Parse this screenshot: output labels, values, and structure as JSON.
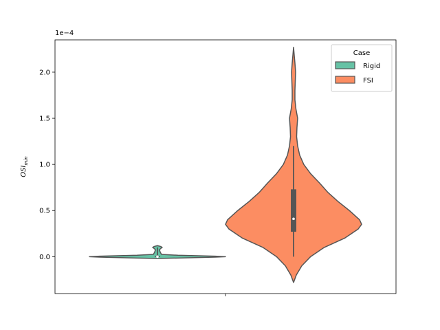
{
  "chart_data": {
    "type": "violin",
    "title": "",
    "xlabel": "",
    "ylabel_main": "OSI",
    "ylabel_sub": "min",
    "y_offset_text": "1e−4",
    "ylim": [
      -0.4,
      2.35
    ],
    "yticks": [
      {
        "value": 0.0,
        "label": "0.0"
      },
      {
        "value": 0.5,
        "label": "0.5"
      },
      {
        "value": 1.0,
        "label": "1.0"
      },
      {
        "value": 1.5,
        "label": "1.5"
      },
      {
        "value": 2.0,
        "label": "2.0"
      }
    ],
    "legend": {
      "title": "Case",
      "placement": "top-right",
      "entries": [
        "Rigid",
        "FSI"
      ]
    },
    "series": [
      {
        "name": "Rigid",
        "color": "#66c2a5",
        "density": [
          {
            "y": -0.02,
            "w": 0.0
          },
          {
            "y": -0.015,
            "w": 0.3
          },
          {
            "y": -0.005,
            "w": 0.85
          },
          {
            "y": 0.0,
            "w": 1.0
          },
          {
            "y": 0.005,
            "w": 0.85
          },
          {
            "y": 0.015,
            "w": 0.3
          },
          {
            "y": 0.025,
            "w": 0.06
          },
          {
            "y": 0.05,
            "w": 0.04
          },
          {
            "y": 0.075,
            "w": 0.03
          },
          {
            "y": 0.09,
            "w": 0.05
          },
          {
            "y": 0.1,
            "w": 0.07
          },
          {
            "y": 0.11,
            "w": 0.05
          },
          {
            "y": 0.12,
            "w": 0.0
          }
        ],
        "box": {
          "q1": 0.0,
          "median": 0.0,
          "q3": 0.01,
          "whisker_low": 0.0,
          "whisker_high": 0.1
        }
      },
      {
        "name": "FSI",
        "color": "#fc8d62",
        "density": [
          {
            "y": -0.28,
            "w": 0.0
          },
          {
            "y": -0.2,
            "w": 0.04
          },
          {
            "y": -0.1,
            "w": 0.12
          },
          {
            "y": 0.0,
            "w": 0.25
          },
          {
            "y": 0.1,
            "w": 0.45
          },
          {
            "y": 0.2,
            "w": 0.75
          },
          {
            "y": 0.3,
            "w": 0.95
          },
          {
            "y": 0.35,
            "w": 1.0
          },
          {
            "y": 0.4,
            "w": 0.97
          },
          {
            "y": 0.5,
            "w": 0.82
          },
          {
            "y": 0.6,
            "w": 0.65
          },
          {
            "y": 0.7,
            "w": 0.5
          },
          {
            "y": 0.8,
            "w": 0.38
          },
          {
            "y": 0.9,
            "w": 0.25
          },
          {
            "y": 1.0,
            "w": 0.15
          },
          {
            "y": 1.1,
            "w": 0.09
          },
          {
            "y": 1.2,
            "w": 0.06
          },
          {
            "y": 1.3,
            "w": 0.045
          },
          {
            "y": 1.4,
            "w": 0.05
          },
          {
            "y": 1.5,
            "w": 0.06
          },
          {
            "y": 1.6,
            "w": 0.035
          },
          {
            "y": 1.7,
            "w": 0.02
          },
          {
            "y": 1.8,
            "w": 0.02
          },
          {
            "y": 1.9,
            "w": 0.025
          },
          {
            "y": 2.0,
            "w": 0.03
          },
          {
            "y": 2.1,
            "w": 0.02
          },
          {
            "y": 2.2,
            "w": 0.008
          },
          {
            "y": 2.27,
            "w": 0.0
          }
        ],
        "box": {
          "q1": 0.27,
          "median": 0.41,
          "q3": 0.73,
          "whisker_low": 0.0,
          "whisker_high": 1.2
        }
      }
    ]
  }
}
